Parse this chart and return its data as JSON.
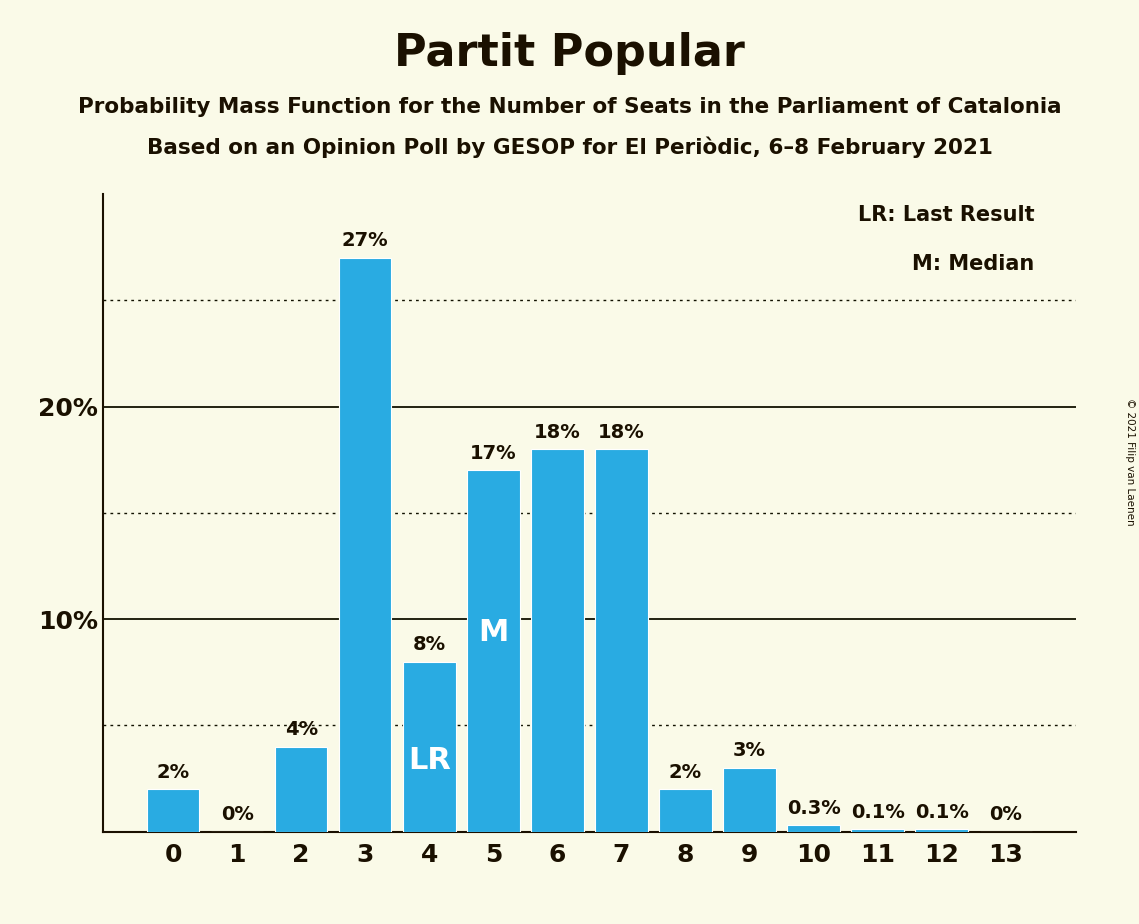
{
  "title": "Partit Popular",
  "subtitle1": "Probability Mass Function for the Number of Seats in the Parliament of Catalonia",
  "subtitle2": "Based on an Opinion Poll by GESOP for El Periòdic, 6–8 February 2021",
  "copyright": "© 2021 Filip van Laenen",
  "categories": [
    0,
    1,
    2,
    3,
    4,
    5,
    6,
    7,
    8,
    9,
    10,
    11,
    12,
    13
  ],
  "values": [
    2,
    0,
    4,
    27,
    8,
    17,
    18,
    18,
    2,
    3,
    0.3,
    0.1,
    0.1,
    0
  ],
  "labels": [
    "2%",
    "0%",
    "4%",
    "27%",
    "8%",
    "17%",
    "18%",
    "18%",
    "2%",
    "3%",
    "0.3%",
    "0.1%",
    "0.1%",
    "0%"
  ],
  "bar_color": "#29ABE2",
  "background_color": "#FAFAE8",
  "text_color": "#1a1000",
  "lr_bar": 4,
  "median_bar": 5,
  "lr_label": "LR",
  "median_label": "M",
  "legend_lr": "LR: Last Result",
  "legend_m": "M: Median",
  "solid_yticks": [
    10,
    20
  ],
  "dotted_yticks": [
    5,
    15,
    25
  ],
  "ylim": [
    0,
    30
  ],
  "title_fontsize": 32,
  "subtitle_fontsize": 15.5,
  "label_fontsize": 14,
  "tick_fontsize": 18,
  "legend_fontsize": 15,
  "lr_m_fontsize": 22
}
